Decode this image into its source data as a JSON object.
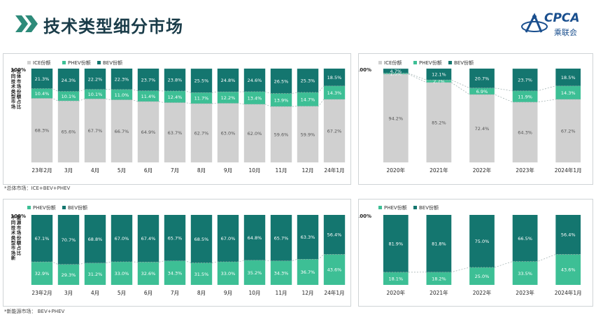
{
  "header": {
    "title": "技术类型细分市场",
    "logo_text": "CPCA",
    "logo_sub": "乘联会"
  },
  "colors": {
    "ice": "#d0d0d0",
    "phev": "#3dbf95",
    "bev": "#14766f",
    "title": "#1a3c49",
    "chevron": "#2e8b7a"
  },
  "notes": {
    "top": "*总体市场：ICE+BEV+PHEV",
    "bottom": "*新能源市场：  BEV+PHEV"
  },
  "chart_data": [
    {
      "type": "bar",
      "stacked": true,
      "ylabel": "不同技术类型市场总体市场份额占比",
      "y_top_label": "100%",
      "ylim": [
        0,
        100
      ],
      "legend": [
        "ICE份额",
        "PHEV份额",
        "BEV份额"
      ],
      "categories": [
        "23年2月",
        "3月",
        "4月",
        "5月",
        "6月",
        "7月",
        "8月",
        "9月",
        "10月",
        "11月",
        "12月",
        "24年1月"
      ],
      "series": [
        {
          "name": "ICE份额",
          "values": [
            68.3,
            65.6,
            67.7,
            66.7,
            64.9,
            63.7,
            62.7,
            63.0,
            62.0,
            59.6,
            59.9,
            67.2
          ],
          "labels": [
            "68.3%",
            "65.6%",
            "67.7%",
            "66.7%",
            "64.9%",
            "63.7%",
            "62.7%",
            "63.0%",
            "62.0%",
            "59.6%",
            "59.9%",
            "67.2%"
          ]
        },
        {
          "name": "PHEV份额",
          "values": [
            10.4,
            10.1,
            10.1,
            11.0,
            11.4,
            12.4,
            11.7,
            12.2,
            13.4,
            13.9,
            14.7,
            14.3
          ],
          "labels": [
            "10.4%",
            "10.1%",
            "10.1%",
            "11.0%",
            "11.4%",
            "12.4%",
            "11.7%",
            "12.2%",
            "13.4%",
            "13.9%",
            "14.7%",
            "14.3%"
          ]
        },
        {
          "name": "BEV份额",
          "values": [
            21.3,
            24.3,
            22.2,
            22.3,
            23.7,
            23.8,
            25.5,
            24.8,
            24.6,
            26.5,
            25.3,
            18.5
          ],
          "labels": [
            "21.3%",
            "24.3%",
            "22.2%",
            "22.3%",
            "23.7%",
            "23.8%",
            "25.5%",
            "24.8%",
            "24.6%",
            "26.5%",
            "25.3%",
            "18.5%"
          ]
        }
      ]
    },
    {
      "type": "bar",
      "stacked": true,
      "y_top_label": "100%",
      "ylim": [
        0,
        100
      ],
      "legend": [
        "ICE份额",
        "PHEV份额",
        "BEV份额"
      ],
      "categories": [
        "2020年",
        "2021年",
        "2022年",
        "2023年",
        "2024年1月"
      ],
      "series": [
        {
          "name": "ICE份额",
          "values": [
            94.2,
            85.2,
            72.4,
            64.3,
            67.2
          ],
          "labels": [
            "94.2%",
            "85.2%",
            "72.4%",
            "64.3%",
            "67.2%"
          ]
        },
        {
          "name": "PHEV份额",
          "values": [
            1.0,
            2.7,
            6.9,
            11.9,
            14.3
          ],
          "labels": [
            "1.0%",
            "2.7%",
            "6.9%",
            "11.9%",
            "14.3%"
          ]
        },
        {
          "name": "BEV份额",
          "values": [
            4.7,
            12.1,
            20.7,
            23.7,
            18.5
          ],
          "labels": [
            "4.7%",
            "12.1%",
            "20.7%",
            "23.7%",
            "18.5%"
          ]
        }
      ]
    },
    {
      "type": "bar",
      "stacked": true,
      "ylabel": "不同技术类型市场新能源市场份额占比",
      "y_top_label": "100%",
      "ylim": [
        0,
        100
      ],
      "legend": [
        "PHEV份额",
        "BEV份额"
      ],
      "categories": [
        "23年2月",
        "3月",
        "4月",
        "5月",
        "6月",
        "7月",
        "8月",
        "9月",
        "10月",
        "11月",
        "12月",
        "24年1月"
      ],
      "series": [
        {
          "name": "PHEV份额",
          "values": [
            32.9,
            29.3,
            31.2,
            33.0,
            32.6,
            34.3,
            31.5,
            33.0,
            35.2,
            34.3,
            36.7,
            43.6
          ],
          "labels": [
            "32.9%",
            "29.3%",
            "31.2%",
            "33.0%",
            "32.6%",
            "34.3%",
            "31.5%",
            "33.0%",
            "35.2%",
            "34.3%",
            "36.7%",
            "43.6%"
          ]
        },
        {
          "name": "BEV份额",
          "values": [
            67.1,
            70.7,
            68.8,
            67.0,
            67.4,
            65.7,
            68.5,
            67.0,
            64.8,
            65.7,
            63.3,
            56.4
          ],
          "labels": [
            "67.1%",
            "70.7%",
            "68.8%",
            "67.0%",
            "67.4%",
            "65.7%",
            "68.5%",
            "67.0%",
            "64.8%",
            "65.7%",
            "63.3%",
            "56.4%"
          ]
        }
      ]
    },
    {
      "type": "bar",
      "stacked": true,
      "y_top_label": "100%",
      "ylim": [
        0,
        100
      ],
      "legend": [
        "PHEV份额",
        "BEV份额"
      ],
      "categories": [
        "2020年",
        "2021年",
        "2022年",
        "2023年",
        "2024年1月"
      ],
      "series": [
        {
          "name": "PHEV份额",
          "values": [
            18.1,
            18.2,
            25.0,
            33.5,
            43.6
          ],
          "labels": [
            "18.1%",
            "18.2%",
            "25.0%",
            "33.5%",
            "43.6%"
          ]
        },
        {
          "name": "BEV份额",
          "values": [
            81.9,
            81.8,
            75.0,
            66.5,
            56.4
          ],
          "labels": [
            "81.9%",
            "81.8%",
            "75.0%",
            "66.5%",
            "56.4%"
          ]
        }
      ]
    }
  ]
}
